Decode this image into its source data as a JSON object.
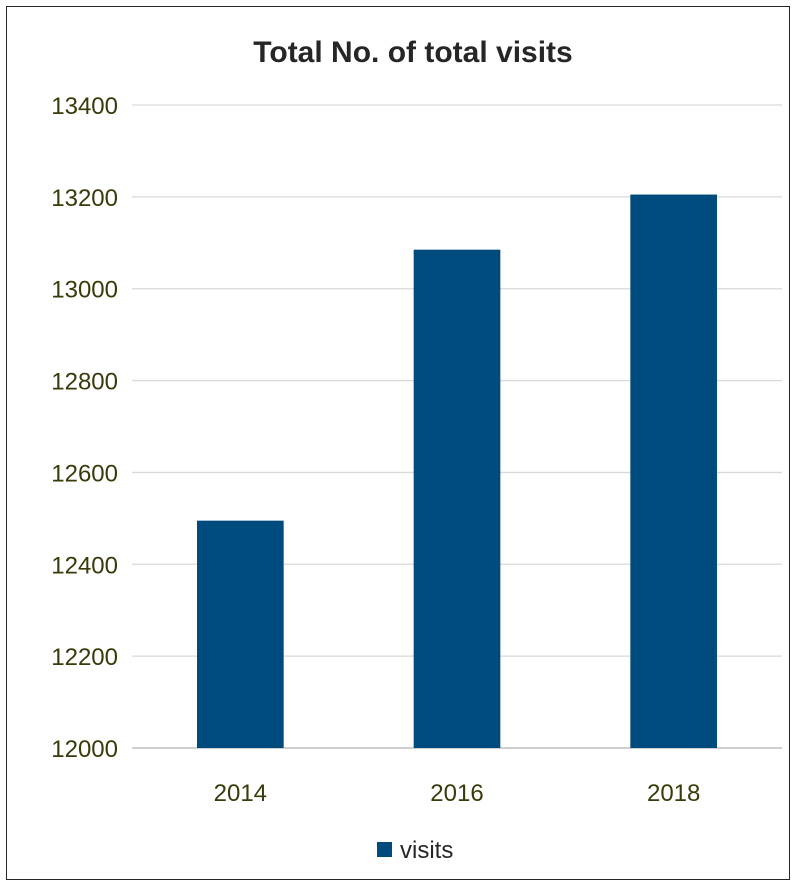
{
  "chart_data": {
    "type": "bar",
    "title": "Total No. of total visits",
    "xlabel": "",
    "ylabel": "",
    "categories": [
      "2014",
      "2016",
      "2018"
    ],
    "series": [
      {
        "name": "visits",
        "values": [
          12495,
          13085,
          13205
        ],
        "color": "#004B7E"
      }
    ],
    "ylim": [
      12000,
      13400
    ],
    "ytick_step": 200,
    "yticks": [
      "12000",
      "12200",
      "12400",
      "12600",
      "12800",
      "13000",
      "13200",
      "13400"
    ],
    "grid": true,
    "legend_position": "bottom"
  }
}
